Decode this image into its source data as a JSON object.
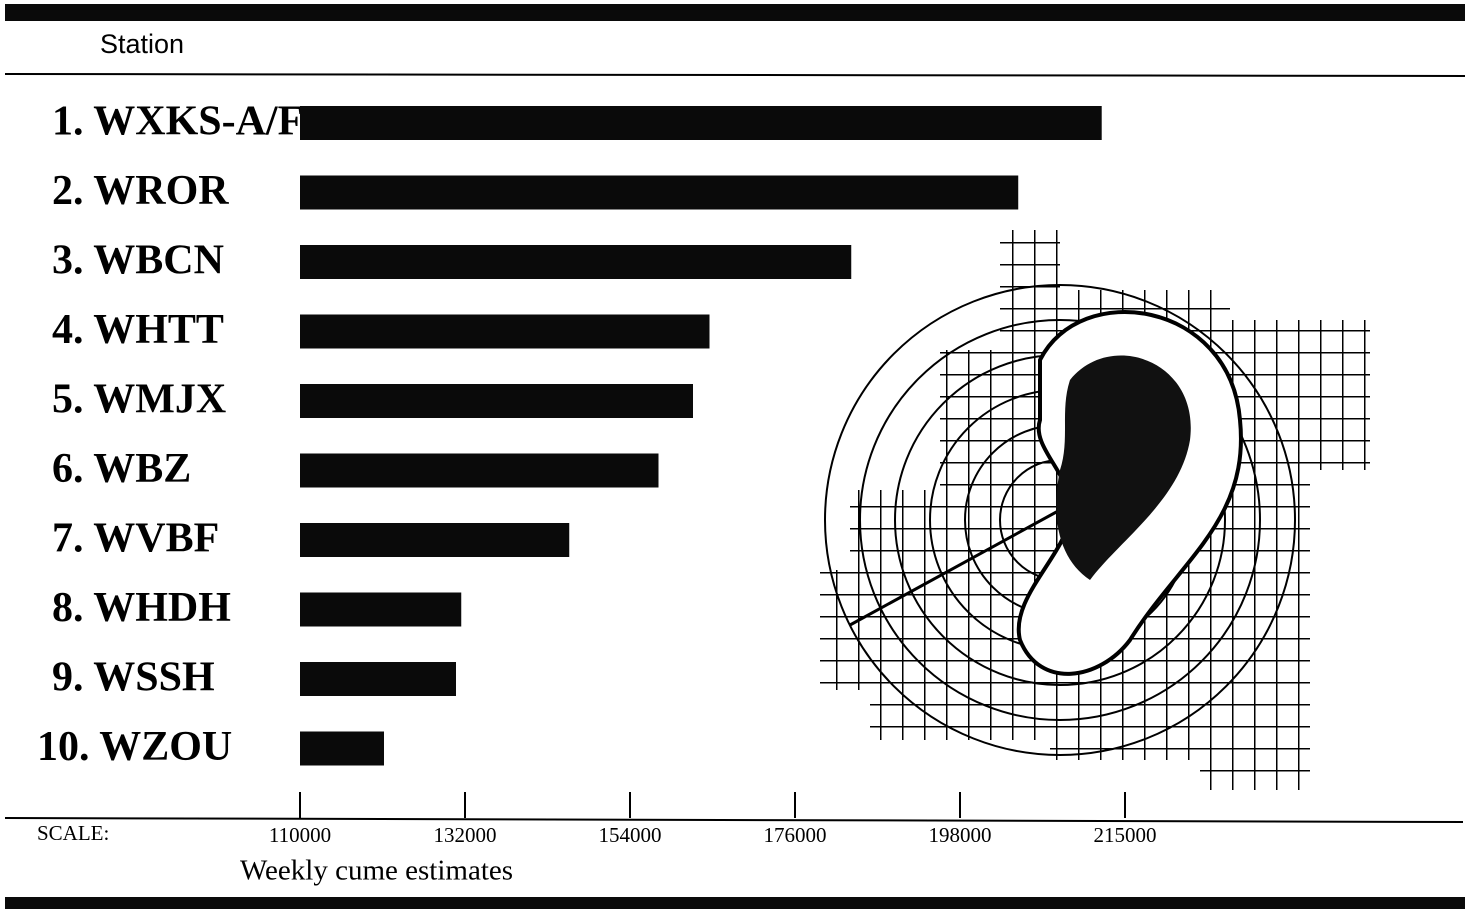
{
  "chart_data": {
    "type": "bar",
    "orientation": "horizontal",
    "header": "Station",
    "scale_label": "SCALE:",
    "x_label": "Weekly cume estimates",
    "categories": [
      "1. WXKS-A/F",
      "2. WROR",
      "3. WBCN",
      "4. WHTT",
      "5. WMJX",
      "6. WBZ",
      "7. WVBF",
      "8. WHDH",
      "9. WSSH",
      "10. WZOU"
    ],
    "values": [
      212600,
      204000,
      183500,
      164600,
      162400,
      157800,
      145900,
      131500,
      130800,
      121200
    ],
    "color": "#0a0a0a",
    "xlim": [
      110000,
      215000
    ],
    "xticks": [
      110000,
      132000,
      154000,
      176000,
      198000,
      215000
    ]
  }
}
